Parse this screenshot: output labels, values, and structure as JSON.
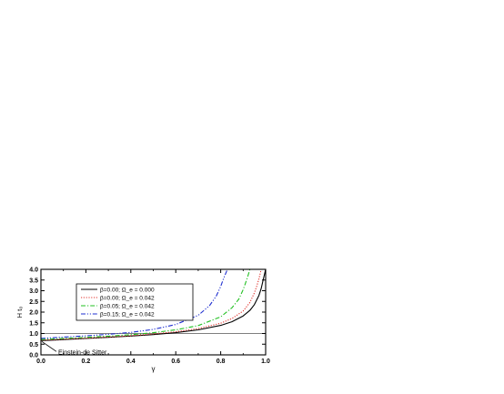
{
  "chart_data": {
    "type": "line",
    "xlabel": "γ",
    "ylabel": "H t₀",
    "xlim": [
      0.0,
      1.0
    ],
    "ylim": [
      0.0,
      4.0
    ],
    "xticks": [
      "0.0",
      "0.2",
      "0.4",
      "0.6",
      "0.8",
      "1.0"
    ],
    "yticks": [
      "0.0",
      "0.5",
      "1.0",
      "1.5",
      "2.0",
      "2.5",
      "3.0",
      "3.5",
      "4.0"
    ],
    "legend_position": "upper-left",
    "reference_line": {
      "y": 1.0
    },
    "annotation": {
      "text": "Einstein-de Sitter",
      "x": 0.0,
      "y": 0.667
    },
    "series": [
      {
        "name": "β=0.00; Ω_e = 0.000",
        "color": "#000000",
        "dash": "solid",
        "x": [
          0.0,
          0.05,
          0.1,
          0.2,
          0.3,
          0.4,
          0.5,
          0.6,
          0.7,
          0.8,
          0.85,
          0.9,
          0.93,
          0.95,
          0.97,
          0.98,
          0.99,
          1.0
        ],
        "y": [
          0.667,
          0.69,
          0.715,
          0.765,
          0.82,
          0.88,
          0.95,
          1.04,
          1.17,
          1.38,
          1.55,
          1.82,
          2.08,
          2.35,
          2.78,
          3.1,
          3.55,
          4.0
        ]
      },
      {
        "name": "β=0.00; Ω_e = 0.042",
        "color": "#e0302a",
        "dash": "dot",
        "x": [
          0.0,
          0.05,
          0.1,
          0.2,
          0.3,
          0.4,
          0.5,
          0.6,
          0.7,
          0.8,
          0.85,
          0.9,
          0.93,
          0.95,
          0.96,
          0.97,
          0.98
        ],
        "y": [
          0.69,
          0.71,
          0.735,
          0.78,
          0.835,
          0.9,
          0.98,
          1.08,
          1.23,
          1.48,
          1.7,
          2.05,
          2.45,
          2.9,
          3.2,
          3.55,
          4.0
        ]
      },
      {
        "name": "β=0.05; Ω_e = 0.042",
        "color": "#22c022",
        "dash": "dashdot",
        "x": [
          0.0,
          0.05,
          0.1,
          0.2,
          0.3,
          0.4,
          0.5,
          0.6,
          0.7,
          0.8,
          0.85,
          0.88,
          0.9,
          0.91,
          0.92,
          0.93
        ],
        "y": [
          0.72,
          0.745,
          0.77,
          0.82,
          0.875,
          0.945,
          1.04,
          1.17,
          1.37,
          1.78,
          2.2,
          2.6,
          3.05,
          3.35,
          3.65,
          4.0
        ]
      },
      {
        "name": "β=0.15; Ω_e = 0.042",
        "color": "#1f2fd0",
        "dash": "dashdotdot",
        "x": [
          0.0,
          0.05,
          0.1,
          0.2,
          0.3,
          0.4,
          0.5,
          0.6,
          0.7,
          0.75,
          0.78,
          0.8,
          0.81,
          0.82,
          0.83
        ],
        "y": [
          0.77,
          0.8,
          0.83,
          0.89,
          0.96,
          1.05,
          1.19,
          1.42,
          1.85,
          2.3,
          2.75,
          3.2,
          3.5,
          3.75,
          4.0
        ]
      }
    ]
  }
}
